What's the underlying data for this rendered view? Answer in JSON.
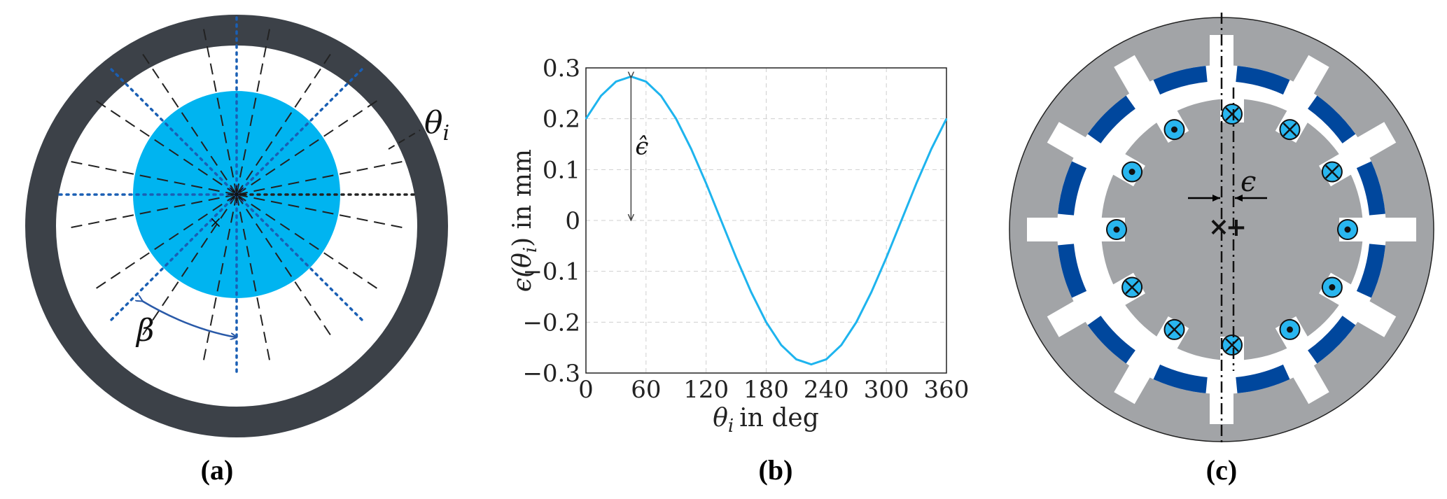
{
  "panels": [
    {
      "label": "(a)"
    },
    {
      "label": "(b)"
    },
    {
      "label": "(c)"
    }
  ],
  "diagram_a": {
    "theta_label": "θ",
    "theta_sub": "i",
    "beta_label": "β",
    "colors": {
      "stator": "#3c4148",
      "rotor": "#00b4f0",
      "dotted": "#1a5fb4",
      "beta": "#2a5aa8"
    }
  },
  "chart_data": {
    "type": "line",
    "xlabel_symbol": "θ",
    "xlabel_sub": "i",
    "xlabel_text": "in deg",
    "ylabel_prefix": "ϵ(θ",
    "ylabel_sub": "i",
    "ylabel_suffix": ") in mm",
    "xlim": [
      0,
      360
    ],
    "ylim": [
      -0.3,
      0.3
    ],
    "xticks": [
      0,
      60,
      120,
      180,
      240,
      300,
      360
    ],
    "yticks": [
      0.3,
      0.2,
      0.1,
      0,
      -0.1,
      -0.2,
      -0.3
    ],
    "grid": true,
    "annotation": "ϵ̂",
    "annotation_x": 45,
    "color": "#1eb4ee",
    "series": [
      {
        "x": [
          0,
          15,
          30,
          45,
          60,
          75,
          90,
          105,
          120,
          135,
          150,
          165,
          180,
          195,
          210,
          225,
          240,
          255,
          270,
          285,
          300,
          315,
          330,
          345,
          360
        ],
        "values": [
          0.2,
          0.245,
          0.273,
          0.283,
          0.273,
          0.245,
          0.2,
          0.141,
          0.073,
          0.0,
          -0.073,
          -0.141,
          -0.2,
          -0.245,
          -0.273,
          -0.283,
          -0.273,
          -0.245,
          -0.2,
          -0.141,
          -0.073,
          0.0,
          0.073,
          0.141,
          0.2
        ]
      }
    ]
  },
  "diagram_c": {
    "epsilon_label": "ϵ",
    "colors": {
      "housing": "#a2a4a7",
      "magnet": "#00479d",
      "coil": "#29b6ef"
    }
  }
}
